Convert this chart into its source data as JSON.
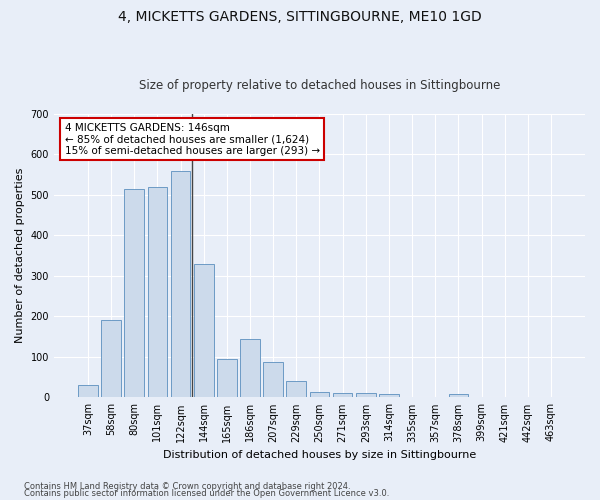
{
  "title": "4, MICKETTS GARDENS, SITTINGBOURNE, ME10 1GD",
  "subtitle": "Size of property relative to detached houses in Sittingbourne",
  "xlabel": "Distribution of detached houses by size in Sittingbourne",
  "ylabel": "Number of detached properties",
  "categories": [
    "37sqm",
    "58sqm",
    "80sqm",
    "101sqm",
    "122sqm",
    "144sqm",
    "165sqm",
    "186sqm",
    "207sqm",
    "229sqm",
    "250sqm",
    "271sqm",
    "293sqm",
    "314sqm",
    "335sqm",
    "357sqm",
    "378sqm",
    "399sqm",
    "421sqm",
    "442sqm",
    "463sqm"
  ],
  "values": [
    30,
    190,
    515,
    520,
    560,
    330,
    95,
    145,
    87,
    40,
    13,
    10,
    10,
    8,
    0,
    0,
    8,
    0,
    0,
    0,
    0
  ],
  "bar_color": "#ccdaeb",
  "bar_edge_color": "#5b8fbe",
  "vline_index": 5,
  "vline_color": "#444444",
  "annotation_text": "4 MICKETTS GARDENS: 146sqm\n← 85% of detached houses are smaller (1,624)\n15% of semi-detached houses are larger (293) →",
  "annotation_box_color": "white",
  "annotation_box_edge": "#cc0000",
  "ylim": [
    0,
    700
  ],
  "yticks": [
    0,
    100,
    200,
    300,
    400,
    500,
    600,
    700
  ],
  "footnote1": "Contains HM Land Registry data © Crown copyright and database right 2024.",
  "footnote2": "Contains public sector information licensed under the Open Government Licence v3.0.",
  "bg_color": "#e8eef8",
  "plot_bg_color": "#e8eef8",
  "grid_color": "#ffffff",
  "title_fontsize": 10,
  "subtitle_fontsize": 8.5,
  "xlabel_fontsize": 8,
  "ylabel_fontsize": 8,
  "tick_fontsize": 7,
  "annotation_fontsize": 7.5,
  "footnote_fontsize": 6
}
